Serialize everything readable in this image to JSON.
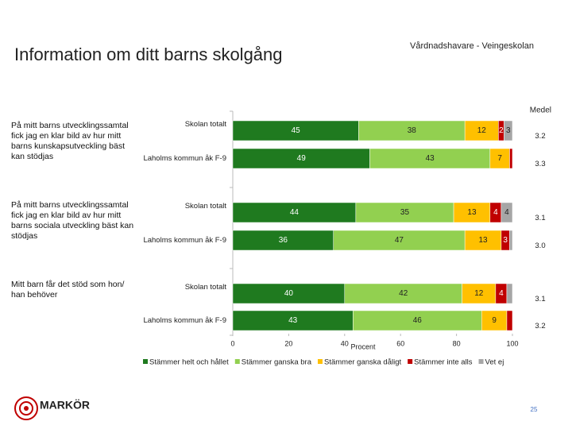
{
  "header": {
    "title": "Information om ditt barns skolgång",
    "subtitle": "Vårdnadshavare - Veingeskolan"
  },
  "chart_data": {
    "type": "bar",
    "orientation": "horizontal",
    "stacked": true,
    "groups": [
      [
        "På mitt barns utvecklingssamtal",
        "fick jag en klar bild av hur mitt",
        "barns kunskapsutveckling bäst",
        "kan stödjas"
      ],
      [
        "På mitt barns utvecklingssamtal",
        "fick jag en klar bild av hur mitt",
        "barns sociala utveckling bäst kan",
        "stödjas"
      ],
      [
        "Mitt barn får det stöd som hon/",
        "han behöver"
      ]
    ],
    "categories": [
      "Skolan totalt",
      "Laholms kommun åk F-9",
      "Skolan totalt",
      "Laholms kommun åk F-9",
      "Skolan totalt",
      "Laholms kommun åk F-9"
    ],
    "series": [
      {
        "name": "Stämmer helt och hållet",
        "color": "#1f7a1f",
        "values": [
          45,
          49,
          44,
          36,
          40,
          43
        ],
        "value_labels": [
          "45",
          "49",
          "44",
          "36",
          "40",
          "43"
        ]
      },
      {
        "name": "Stämmer ganska bra",
        "color": "#92d050",
        "values": [
          38,
          43,
          35,
          47,
          42,
          46
        ],
        "value_labels": [
          "38",
          "43",
          "35",
          "47",
          "42",
          "46"
        ]
      },
      {
        "name": "Stämmer ganska dåligt",
        "color": "#ffc000",
        "values": [
          12,
          7,
          13,
          13,
          12,
          9
        ],
        "value_labels": [
          "12",
          "7",
          "13",
          "13",
          "12",
          "9"
        ]
      },
      {
        "name": "Stämmer inte alls",
        "color": "#c00000",
        "values": [
          2,
          1,
          4,
          3,
          4,
          2
        ],
        "value_labels": [
          "2",
          null,
          "4",
          "3",
          "4",
          null
        ]
      },
      {
        "name": "Vet ej",
        "color": "#a6a6a6",
        "values": [
          3,
          0,
          4,
          1,
          2,
          0
        ],
        "value_labels": [
          "3",
          null,
          "4",
          null,
          null,
          null
        ]
      }
    ],
    "xlim": [
      0,
      100
    ],
    "xticks": [
      0,
      20,
      40,
      60,
      80,
      100
    ],
    "xlabel": "Procent",
    "medel": {
      "title": "Medel",
      "values": [
        3.2,
        3.3,
        3.1,
        3.0,
        3.1,
        3.2
      ],
      "value_labels": [
        "3.2",
        "3.3",
        "3.1",
        "3.0",
        "3.1",
        "3.2"
      ]
    }
  },
  "footer": {
    "logo": "MARKÖR",
    "page": "25"
  }
}
